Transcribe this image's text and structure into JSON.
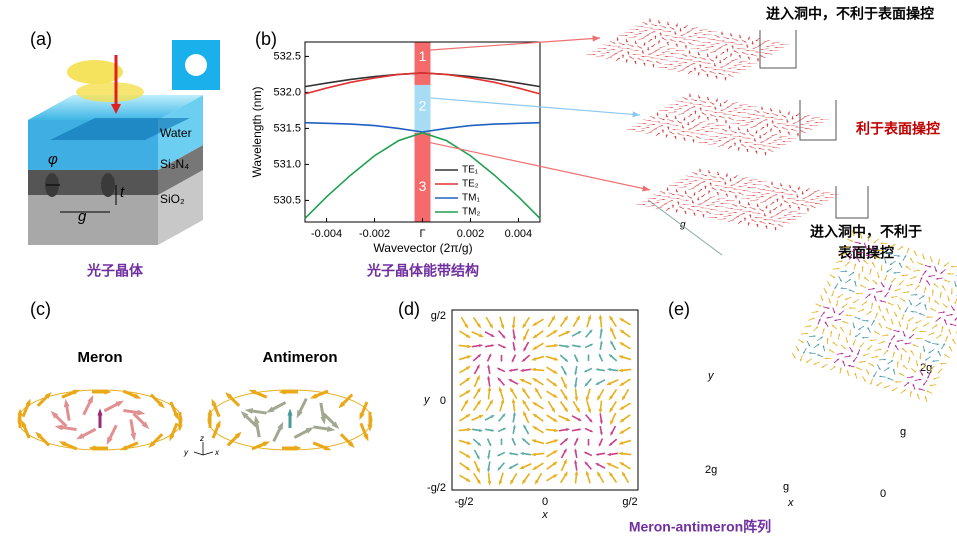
{
  "panels": [
    "(a)",
    "(b)",
    "(c)",
    "(d)",
    "(e)"
  ],
  "panel_a": {
    "layers": [
      "Water",
      "Si₃N₄",
      "SiO₂"
    ],
    "symbols": [
      "φ",
      "t",
      "g"
    ],
    "caption": "光子晶体"
  },
  "chart_data": {
    "type": "line",
    "ylabel": "Wavelength (nm)",
    "xlabel": "Wavevector (2π/g)",
    "caption": "光子晶体能带结构",
    "band_markers": [
      "1",
      "2",
      "3"
    ],
    "x": [
      -0.0049,
      -0.004,
      -0.003,
      -0.002,
      -0.001,
      0,
      0.001,
      0.002,
      0.003,
      0.004,
      0.0049
    ],
    "series": [
      {
        "name": "TE₁",
        "color": "#333333",
        "values": [
          532.08,
          532.13,
          532.18,
          532.22,
          532.25,
          532.27,
          532.25,
          532.22,
          532.18,
          532.13,
          532.08
        ]
      },
      {
        "name": "TE₂",
        "color": "#e03030",
        "values": [
          531.98,
          532.06,
          532.14,
          532.2,
          532.25,
          532.27,
          532.25,
          532.2,
          532.14,
          532.06,
          531.98
        ]
      },
      {
        "name": "TM₁",
        "color": "#2060c0",
        "values": [
          531.58,
          531.57,
          531.56,
          531.54,
          531.5,
          531.45,
          531.5,
          531.54,
          531.56,
          531.57,
          531.58
        ]
      },
      {
        "name": "TM₂",
        "color": "#20a050",
        "values": [
          530.25,
          530.55,
          530.85,
          531.12,
          531.33,
          531.44,
          531.33,
          531.12,
          530.85,
          530.55,
          530.25
        ]
      }
    ],
    "xlim": [
      -0.0049,
      0.0049
    ],
    "xticks": [
      -0.004,
      -0.002,
      {
        "value": 0,
        "label": "Γ"
      },
      0.002,
      0.004
    ],
    "ylim": [
      530.2,
      532.7
    ],
    "yticks": [
      {
        "value": 530.5,
        "label": "530.5"
      },
      {
        "value": 531,
        "label": "531.0"
      },
      {
        "value": 531.5,
        "label": "531.5"
      },
      {
        "value": 532,
        "label": "532.0"
      },
      {
        "value": 532.5,
        "label": "532.5"
      }
    ]
  },
  "notes": {
    "top": "进入洞中，不利于表面操控",
    "middle": "利于表面操控",
    "bottom": [
      "进入洞中，不利于",
      "表面操控"
    ],
    "dimension": "g"
  },
  "panel_c": {
    "labels": [
      "Meron",
      "Antimeron"
    ],
    "axes": [
      "z",
      "y",
      "x"
    ]
  },
  "panel_d": {
    "xticks": [
      "-g/2",
      "0",
      "g/2"
    ],
    "yticks": [
      "g/2",
      "0",
      "-g/2"
    ],
    "xlabel": "x",
    "ylabel": "y"
  },
  "panel_e": {
    "ylabel": "y",
    "xlabel": "x",
    "left_ticks": [
      "2g"
    ],
    "bottom_ticks": [
      "g"
    ],
    "right_ticks": [
      "2g",
      "g",
      "0"
    ],
    "caption": "Meron-antimeron阵列"
  }
}
